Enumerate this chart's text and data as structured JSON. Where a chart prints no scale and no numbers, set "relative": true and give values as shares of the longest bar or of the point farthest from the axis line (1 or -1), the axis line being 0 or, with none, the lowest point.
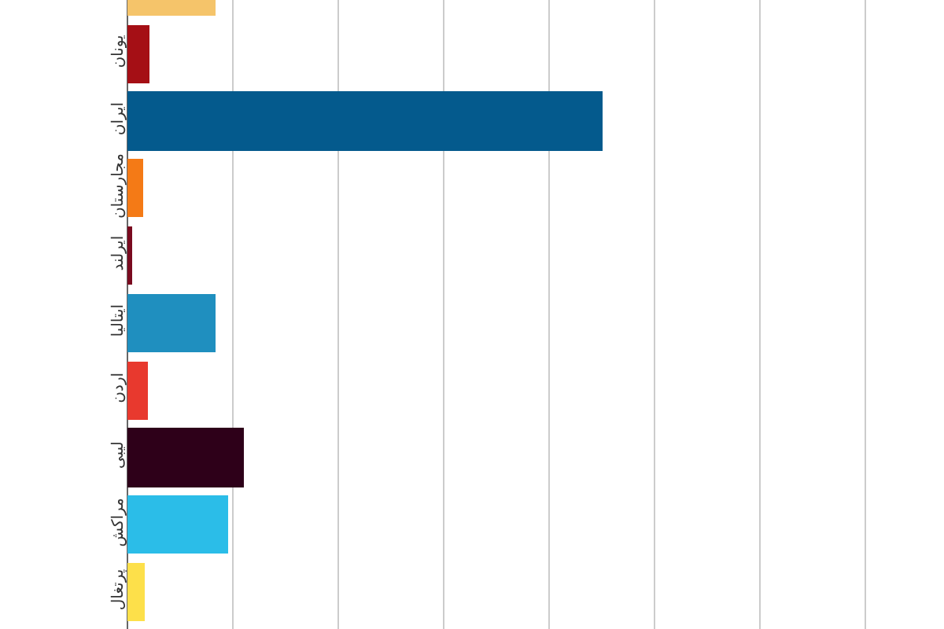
{
  "chart_data": {
    "type": "bar",
    "orientation": "horizontal",
    "relative": true,
    "grid": "x",
    "categories": [
      null,
      "یونان",
      "ایران",
      "مجارستان",
      "ایرلند",
      "ایتالیا",
      "اردن",
      "لیبی",
      "مراکش",
      "پرتغال"
    ],
    "values": [
      0.185,
      0.046,
      1,
      0.033,
      0.01,
      0.185,
      0.043,
      0.245,
      0.212,
      0.036
    ],
    "colors": [
      "#f5c46a",
      "#a50f15",
      "#045a8d",
      "#f47a16",
      "#7a0a1f",
      "#1f8fbf",
      "#e8392e",
      "#2e0019",
      "#2bbde8",
      "#fde04a"
    ]
  }
}
